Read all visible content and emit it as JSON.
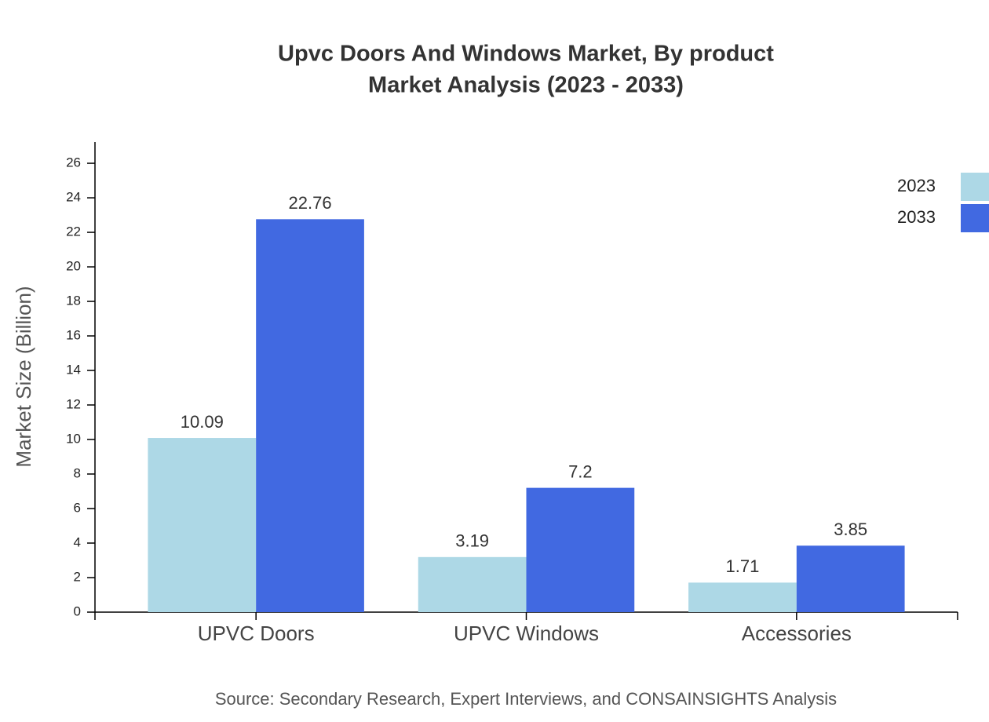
{
  "chart_data": {
    "type": "bar",
    "title": "Upvc Doors And Windows Market, By product",
    "subtitle": "Market Analysis (2023 - 2033)",
    "y_label": "Market Size (Billion)",
    "source": "Source: Secondary Research, Expert Interviews, and CONSAINSIGHTS Analysis",
    "categories": [
      "UPVC Doors",
      "UPVC Windows",
      "Accessories"
    ],
    "series": [
      {
        "name": "2023",
        "color": "#add8e6",
        "values": [
          10.09,
          3.19,
          1.71
        ]
      },
      {
        "name": "2033",
        "color": "#4169e1",
        "values": [
          22.76,
          7.2,
          3.85
        ]
      }
    ],
    "ylim": [
      0,
      27.23
    ],
    "yticks": [
      0,
      2,
      4,
      6,
      8,
      10,
      12,
      14,
      16,
      18,
      20,
      22,
      24,
      26
    ],
    "legend": "top-right",
    "grid": false
  }
}
